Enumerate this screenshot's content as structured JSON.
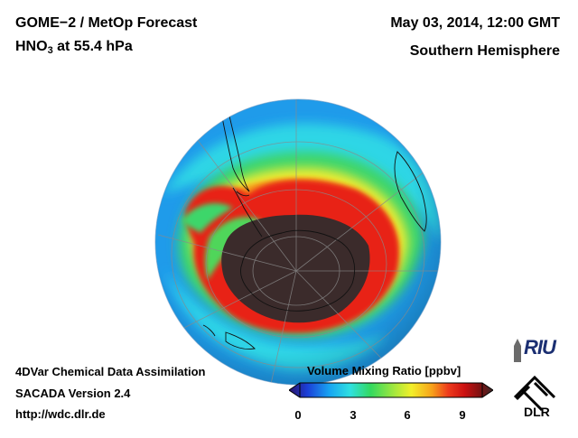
{
  "header": {
    "title_line1": "GOME−2 / MetOp Forecast",
    "species_prefix": "HNO",
    "species_subscript": "3",
    "species_suffix": " at 55.4 hPa",
    "datetime": "May 03, 2014, 12:00 GMT",
    "hemisphere": "Southern Hemisphere"
  },
  "footer": {
    "line1": "4DVar Chemical Data Assimilation",
    "line2": "SACADA Version 2.4",
    "line3": "http://wdc.dlr.de"
  },
  "colorbar": {
    "title": "Volume Mixing Ratio [ppbv]",
    "ticks": [
      "0",
      "3",
      "6",
      "9"
    ],
    "colors": [
      "#2b1268",
      "#1b3fd8",
      "#18a6f2",
      "#2fe0e0",
      "#33d95f",
      "#a8e83c",
      "#f2ef2a",
      "#f7a21a",
      "#ee3b1c",
      "#cc1111",
      "#7a1212",
      "#3a2a2a"
    ]
  },
  "logos": {
    "riu_text": "RIU",
    "dlr_text": "DLR"
  },
  "map_colors": {
    "ocean_blue": "#1f9bea",
    "cyan": "#2fe0e0",
    "green": "#3ed66a",
    "yellow": "#f0ec30",
    "orange": "#f59a1e",
    "red": "#e82018",
    "dark": "#3b2b2b"
  }
}
